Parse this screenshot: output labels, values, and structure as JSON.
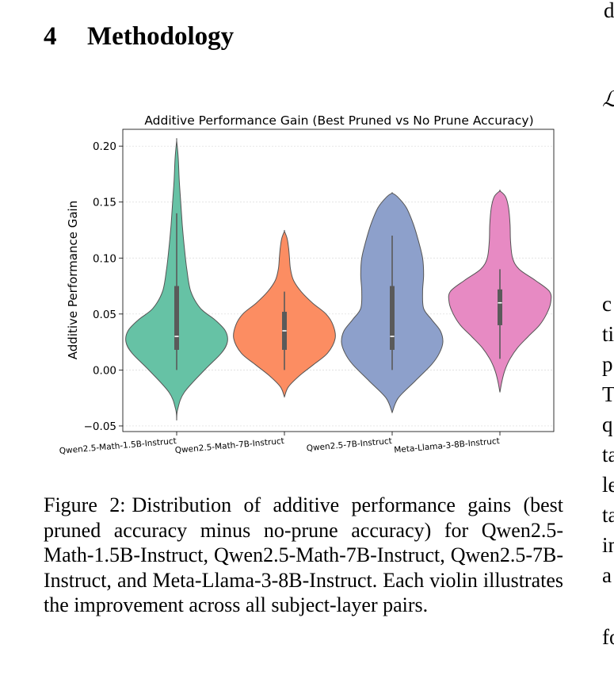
{
  "section": {
    "number": "4",
    "title": "Methodology"
  },
  "right_column_fragments": [
    "d",
    "ℒ",
    "c",
    "ti",
    "p",
    "T",
    "q",
    "ta",
    "le",
    "ta",
    "in",
    "a",
    "fo"
  ],
  "chart_data": {
    "type": "violin",
    "title": "Additive Performance Gain (Best Pruned vs No Prune Accuracy)",
    "xlabel": "",
    "ylabel": "Additive Performance Gain",
    "ylim": [
      -0.055,
      0.215
    ],
    "yticks": [
      -0.05,
      0.0,
      0.05,
      0.1,
      0.15,
      0.2
    ],
    "ytick_labels": [
      "−0.05",
      "0.00",
      "0.05",
      "0.10",
      "0.15",
      "0.20"
    ],
    "grid": true,
    "categories": [
      "Qwen2.5-Math-1.5B-Instruct",
      "Qwen2.5-Math-7B-Instruct",
      "Qwen2.5-7B-Instruct",
      "Meta-Llama-3-8B-Instruct"
    ],
    "colors": [
      "#66c2a5",
      "#fc8d62",
      "#8da0cb",
      "#e78ac3"
    ],
    "series": [
      {
        "median": 0.03,
        "q1": 0.018,
        "q3": 0.075,
        "whisker_low": 0.0,
        "whisker_high": 0.14,
        "density": [
          [
            -0.045,
            0.0
          ],
          [
            -0.035,
            0.02
          ],
          [
            -0.02,
            0.15
          ],
          [
            0.0,
            0.55
          ],
          [
            0.015,
            0.88
          ],
          [
            0.025,
            1.0
          ],
          [
            0.035,
            0.96
          ],
          [
            0.045,
            0.75
          ],
          [
            0.055,
            0.47
          ],
          [
            0.07,
            0.28
          ],
          [
            0.09,
            0.2
          ],
          [
            0.11,
            0.15
          ],
          [
            0.13,
            0.11
          ],
          [
            0.15,
            0.08
          ],
          [
            0.17,
            0.05
          ],
          [
            0.19,
            0.03
          ],
          [
            0.205,
            0.0
          ]
        ]
      },
      {
        "median": 0.035,
        "q1": 0.018,
        "q3": 0.052,
        "whisker_low": 0.0,
        "whisker_high": 0.07,
        "density": [
          [
            -0.024,
            0.0
          ],
          [
            -0.015,
            0.08
          ],
          [
            -0.005,
            0.3
          ],
          [
            0.005,
            0.58
          ],
          [
            0.015,
            0.85
          ],
          [
            0.028,
            1.0
          ],
          [
            0.04,
            0.96
          ],
          [
            0.05,
            0.82
          ],
          [
            0.06,
            0.55
          ],
          [
            0.07,
            0.33
          ],
          [
            0.08,
            0.18
          ],
          [
            0.09,
            0.12
          ],
          [
            0.1,
            0.1
          ],
          [
            0.11,
            0.08
          ],
          [
            0.118,
            0.05
          ],
          [
            0.124,
            0.0
          ]
        ]
      },
      {
        "median": 0.03,
        "q1": 0.018,
        "q3": 0.075,
        "whisker_low": 0.0,
        "whisker_high": 0.12,
        "density": [
          [
            -0.038,
            0.0
          ],
          [
            -0.025,
            0.12
          ],
          [
            -0.01,
            0.45
          ],
          [
            0.005,
            0.78
          ],
          [
            0.015,
            0.93
          ],
          [
            0.025,
            1.0
          ],
          [
            0.035,
            0.95
          ],
          [
            0.045,
            0.78
          ],
          [
            0.055,
            0.62
          ],
          [
            0.07,
            0.6
          ],
          [
            0.085,
            0.62
          ],
          [
            0.1,
            0.6
          ],
          [
            0.115,
            0.52
          ],
          [
            0.13,
            0.42
          ],
          [
            0.145,
            0.28
          ],
          [
            0.155,
            0.1
          ],
          [
            0.158,
            0.0
          ]
        ]
      },
      {
        "median": 0.06,
        "q1": 0.04,
        "q3": 0.072,
        "whisker_low": 0.01,
        "whisker_high": 0.09,
        "density": [
          [
            -0.02,
            0.0
          ],
          [
            -0.01,
            0.04
          ],
          [
            0.0,
            0.1
          ],
          [
            0.01,
            0.2
          ],
          [
            0.02,
            0.35
          ],
          [
            0.03,
            0.56
          ],
          [
            0.04,
            0.78
          ],
          [
            0.05,
            0.92
          ],
          [
            0.06,
            1.0
          ],
          [
            0.07,
            0.98
          ],
          [
            0.08,
            0.7
          ],
          [
            0.09,
            0.38
          ],
          [
            0.1,
            0.25
          ],
          [
            0.115,
            0.21
          ],
          [
            0.13,
            0.2
          ],
          [
            0.145,
            0.17
          ],
          [
            0.155,
            0.11
          ],
          [
            0.16,
            0.0
          ]
        ]
      }
    ]
  },
  "caption": {
    "label": "Figure 2:",
    "text": "Distribution of additive performance gains (best pruned accuracy minus no-prune accuracy) for Qwen2.5-Math-1.5B-Instruct, Qwen2.5-Math-7B-Instruct, Qwen2.5-7B-Instruct, and Meta-Llama-3-8B-Instruct. Each violin illustrates the improvement across all subject-layer pairs."
  }
}
